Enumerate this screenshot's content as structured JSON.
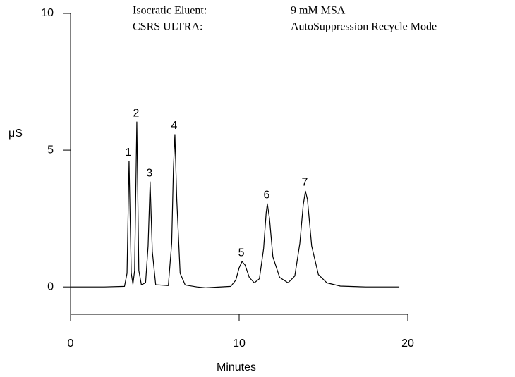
{
  "chart_data": {
    "type": "line",
    "annotations": [
      [
        "Isocratic  Eluent:",
        "9 mM MSA"
      ],
      [
        "CSRS ULTRA:",
        "AutoSuppression Recycle Mode"
      ]
    ],
    "ylabel": "μS",
    "xlabel": "Minutes",
    "xlim": [
      0,
      20
    ],
    "xticks": [
      0,
      10,
      20
    ],
    "ylim": [
      -1,
      10
    ],
    "yticks": [
      0,
      5,
      10
    ],
    "color": "#000000",
    "x": [
      0,
      2.0,
      3.2,
      3.35,
      3.47,
      3.6,
      3.7,
      3.8,
      3.93,
      4.05,
      4.2,
      4.45,
      4.6,
      4.72,
      4.85,
      5.05,
      5.8,
      6.0,
      6.1,
      6.19,
      6.3,
      6.5,
      6.8,
      7.5,
      8.0,
      9.5,
      9.8,
      10.0,
      10.17,
      10.35,
      10.6,
      10.9,
      11.2,
      11.45,
      11.6,
      11.67,
      11.8,
      12.0,
      12.4,
      12.9,
      13.3,
      13.6,
      13.8,
      13.93,
      14.05,
      14.3,
      14.7,
      15.2,
      16.0,
      17.5,
      19.5
    ],
    "values": [
      0,
      0,
      0.02,
      0.5,
      4.6,
      0.5,
      0.1,
      0.6,
      6.03,
      0.6,
      0.08,
      0.15,
      1.5,
      3.84,
      1.3,
      0.08,
      0.05,
      1.6,
      4.3,
      5.57,
      3.2,
      0.5,
      0.07,
      0.0,
      -0.03,
      0.02,
      0.25,
      0.7,
      0.93,
      0.8,
      0.35,
      0.15,
      0.3,
      1.4,
      2.7,
      3.04,
      2.5,
      1.1,
      0.35,
      0.15,
      0.4,
      1.6,
      3.0,
      3.5,
      3.2,
      1.5,
      0.45,
      0.15,
      0.03,
      0.0,
      0.0
    ],
    "peaks": [
      {
        "label": "1",
        "time": 3.47,
        "height": 4.6
      },
      {
        "label": "2",
        "time": 3.93,
        "height": 6.03
      },
      {
        "label": "3",
        "time": 4.72,
        "height": 3.84
      },
      {
        "label": "4",
        "time": 6.19,
        "height": 5.57
      },
      {
        "label": "5",
        "time": 10.17,
        "height": 0.93
      },
      {
        "label": "6",
        "time": 11.67,
        "height": 3.04
      },
      {
        "label": "7",
        "time": 13.93,
        "height": 3.5
      }
    ]
  }
}
